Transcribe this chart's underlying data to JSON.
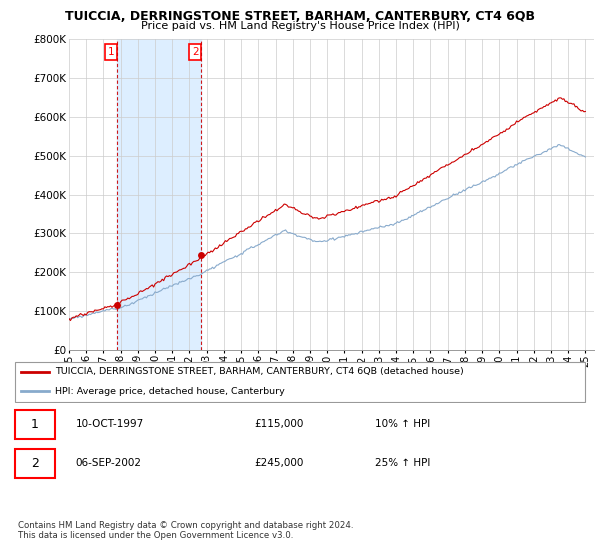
{
  "title": "TUICCIA, DERRINGSTONE STREET, BARHAM, CANTERBURY, CT4 6QB",
  "subtitle": "Price paid vs. HM Land Registry's House Price Index (HPI)",
  "legend_line1": "TUICCIA, DERRINGSTONE STREET, BARHAM, CANTERBURY, CT4 6QB (detached house)",
  "legend_line2": "HPI: Average price, detached house, Canterbury",
  "annotation1_date": "10-OCT-1997",
  "annotation1_price": "£115,000",
  "annotation1_hpi": "10% ↑ HPI",
  "annotation2_date": "06-SEP-2002",
  "annotation2_price": "£245,000",
  "annotation2_hpi": "25% ↑ HPI",
  "footer": "Contains HM Land Registry data © Crown copyright and database right 2024.\nThis data is licensed under the Open Government Licence v3.0.",
  "property_color": "#cc0000",
  "hpi_color": "#88aacc",
  "shade_color": "#ddeeff",
  "sale1_year": 1997.78,
  "sale1_price": 115000,
  "sale2_year": 2002.68,
  "sale2_price": 245000,
  "ylim": [
    0,
    800000
  ],
  "xlim_start": 1995,
  "xlim_end": 2025.5,
  "yticks": [
    0,
    100000,
    200000,
    300000,
    400000,
    500000,
    600000,
    700000,
    800000
  ],
  "ytick_labels": [
    "£0",
    "£100K",
    "£200K",
    "£300K",
    "£400K",
    "£500K",
    "£600K",
    "£700K",
    "£800K"
  ],
  "xtick_years": [
    1995,
    1996,
    1997,
    1998,
    1999,
    2000,
    2001,
    2002,
    2003,
    2004,
    2005,
    2006,
    2007,
    2008,
    2009,
    2010,
    2011,
    2012,
    2013,
    2014,
    2015,
    2016,
    2017,
    2018,
    2019,
    2020,
    2021,
    2022,
    2023,
    2024,
    2025
  ],
  "xtick_labels": [
    "95",
    "96",
    "97",
    "98",
    "99",
    "00",
    "01",
    "02",
    "03",
    "04",
    "05",
    "06",
    "07",
    "08",
    "09",
    "10",
    "11",
    "12",
    "13",
    "14",
    "15",
    "16",
    "17",
    "18",
    "19",
    "20",
    "21",
    "22",
    "23",
    "24",
    "25"
  ]
}
